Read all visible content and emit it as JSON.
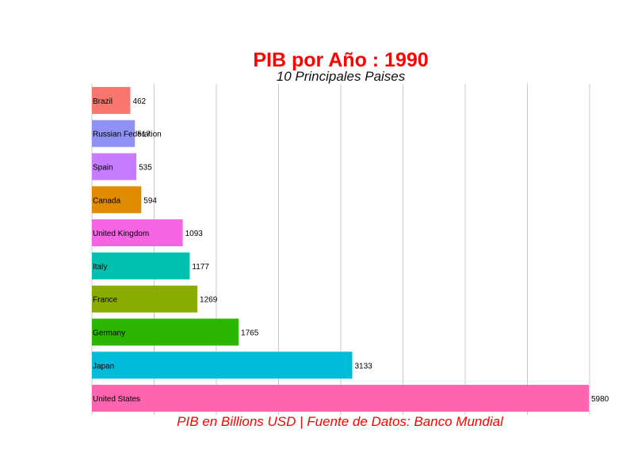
{
  "chart_data": {
    "type": "bar",
    "orientation": "horizontal",
    "title": "PIB por Año : 1990",
    "subtitle": "10 Principales Paises",
    "caption": "PIB en Billions USD | Fuente de Datos: Banco Mundial",
    "xlabel": "",
    "ylabel": "",
    "grid": true,
    "legend": "none",
    "xlim": [
      0,
      5980
    ],
    "categories": [
      "Brazil",
      "Russian Federation",
      "Spain",
      "Canada",
      "United Kingdom",
      "Italy",
      "France",
      "Germany",
      "Japan",
      "United States"
    ],
    "values": [
      462,
      517,
      535,
      594,
      1093,
      1177,
      1269,
      1765,
      3133,
      5980
    ],
    "colors": [
      "#F8766D",
      "#8F91F4",
      "#C77CFF",
      "#E08B00",
      "#F564E3",
      "#00C0AF",
      "#8AAB00",
      "#2BB600",
      "#00BCD8",
      "#FF64B0"
    ]
  }
}
